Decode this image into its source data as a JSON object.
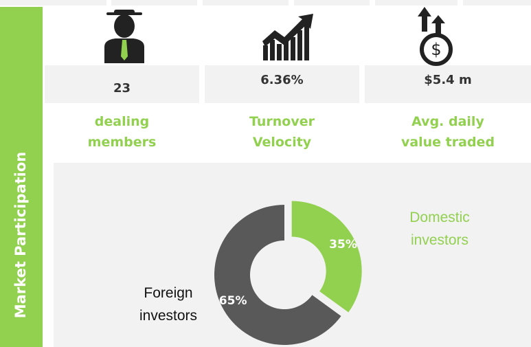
{
  "side_title": "Market Participation",
  "stats": [
    {
      "value": "23",
      "label": "dealing members"
    },
    {
      "value": "6.36%",
      "label": "Turnover Velocity"
    },
    {
      "value": "$5.4 m",
      "label": "Avg. daily value traded"
    }
  ],
  "chart_data": {
    "type": "pie",
    "donut": true,
    "categories": [
      "Domestic investors",
      "Foreign investors"
    ],
    "values": [
      35,
      65
    ],
    "value_labels": [
      "35%",
      "65%"
    ],
    "colors": [
      "#92d050",
      "#595959"
    ]
  }
}
